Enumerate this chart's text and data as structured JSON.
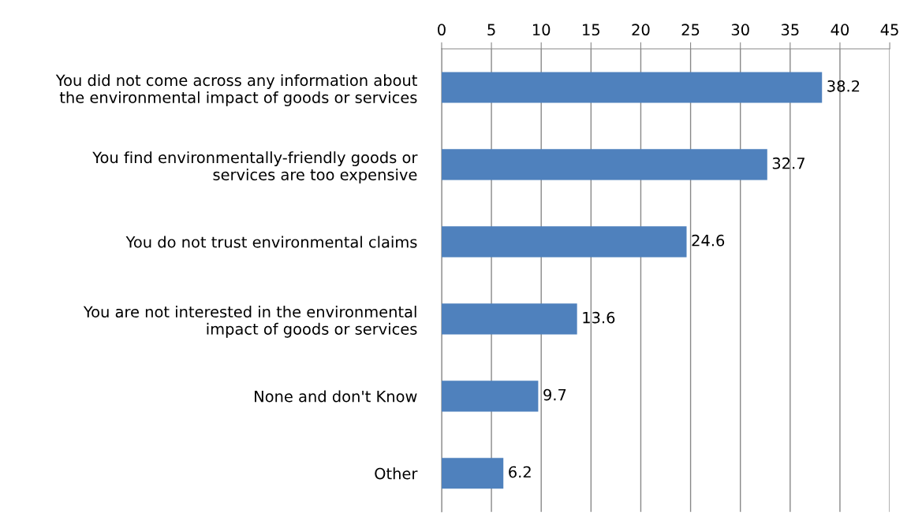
{
  "chart_data": {
    "type": "bar",
    "orientation": "horizontal",
    "categories": [
      "You did not come across any information about\nthe environmental impact of goods or services",
      "You find environmentally-friendly goods or\nservices are too expensive",
      "You do not trust environmental claims",
      "You are not interested in the environmental\nimpact of goods or services",
      "None and don't Know",
      "Other"
    ],
    "values": [
      38.2,
      32.7,
      24.6,
      13.6,
      9.7,
      6.2
    ],
    "color": "#4f81bd",
    "xlim": [
      0,
      45
    ],
    "xticks": [
      0,
      5,
      10,
      15,
      20,
      25,
      30,
      35,
      40,
      45
    ],
    "grid": "x",
    "data_labels": true
  }
}
